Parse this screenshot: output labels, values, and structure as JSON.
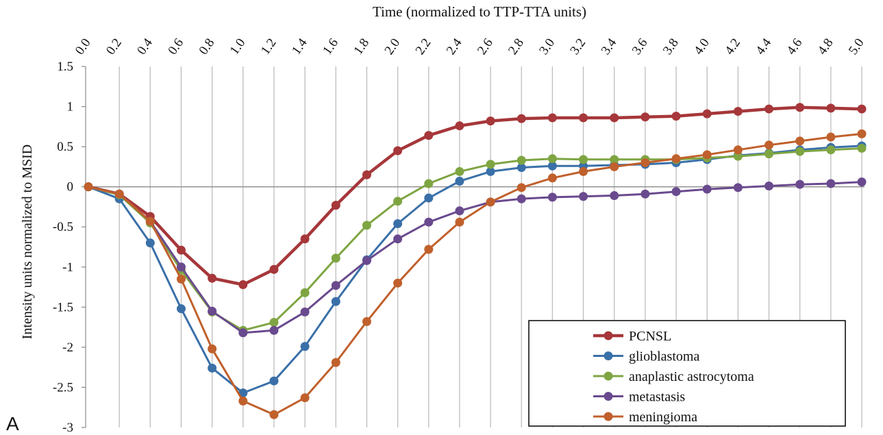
{
  "panel_label": "A",
  "chart_data": {
    "type": "line",
    "xlabel": "Time (normalized to TTP-TTA units)",
    "ylabel": "Intensity units normalized to MSID",
    "x": [
      0.0,
      0.2,
      0.4,
      0.6,
      0.8,
      1.0,
      1.2,
      1.4,
      1.6,
      1.8,
      2.0,
      2.2,
      2.4,
      2.6,
      2.8,
      3.0,
      3.2,
      3.4,
      3.6,
      3.8,
      4.0,
      4.2,
      4.4,
      4.6,
      4.8,
      5.0
    ],
    "x_tick_labels": [
      "0.0",
      "0.2",
      "0.4",
      "0.6",
      "0.8",
      "1.0",
      "1.2",
      "1.4",
      "1.6",
      "1.8",
      "2.0",
      "2.2",
      "2.4",
      "2.6",
      "2.8",
      "3.0",
      "3.2",
      "3.4",
      "3.6",
      "3.8",
      "4.0",
      "4.2",
      "4.4",
      "4.6",
      "4.8",
      "5.0"
    ],
    "y_tick_labels": [
      "1.5",
      "1",
      "0.5",
      "0",
      "-0.5",
      "-1",
      "-1.5",
      "-2",
      "-2.5",
      "-3"
    ],
    "y_ticks": [
      1.5,
      1,
      0.5,
      0,
      -0.5,
      -1,
      -1.5,
      -2,
      -2.5,
      -3
    ],
    "ylim": [
      -3,
      1.5
    ],
    "xlim": [
      0,
      5.0
    ],
    "x_axis_position": "top",
    "grid": "vertical",
    "legend_position": "bottom-right",
    "series": [
      {
        "name": "PCNSL",
        "color": "#a6373a",
        "values": [
          0,
          -0.09,
          -0.37,
          -0.79,
          -1.14,
          -1.22,
          -1.03,
          -0.65,
          -0.23,
          0.15,
          0.45,
          0.64,
          0.76,
          0.82,
          0.85,
          0.86,
          0.86,
          0.86,
          0.87,
          0.88,
          0.91,
          0.94,
          0.97,
          0.99,
          0.98,
          0.97
        ]
      },
      {
        "name": "glioblastoma",
        "color": "#3a70a8",
        "values": [
          0,
          -0.15,
          -0.7,
          -1.52,
          -2.26,
          -2.57,
          -2.42,
          -1.99,
          -1.43,
          -0.91,
          -0.46,
          -0.14,
          0.07,
          0.19,
          0.24,
          0.26,
          0.26,
          0.27,
          0.28,
          0.3,
          0.34,
          0.39,
          0.42,
          0.46,
          0.49,
          0.51
        ]
      },
      {
        "name": "anaplastic astrocytoma",
        "color": "#7ea542",
        "values": [
          0,
          -0.1,
          -0.45,
          -1.04,
          -1.56,
          -1.79,
          -1.69,
          -1.32,
          -0.89,
          -0.48,
          -0.18,
          0.04,
          0.19,
          0.28,
          0.33,
          0.35,
          0.34,
          0.34,
          0.34,
          0.34,
          0.36,
          0.38,
          0.41,
          0.44,
          0.46,
          0.48
        ]
      },
      {
        "name": "metastasis",
        "color": "#6a4a8e",
        "values": [
          0,
          -0.09,
          -0.43,
          -1.0,
          -1.55,
          -1.82,
          -1.79,
          -1.56,
          -1.23,
          -0.92,
          -0.65,
          -0.44,
          -0.3,
          -0.19,
          -0.15,
          -0.13,
          -0.12,
          -0.11,
          -0.09,
          -0.06,
          -0.03,
          -0.01,
          0.01,
          0.03,
          0.04,
          0.06
        ]
      },
      {
        "name": "meningioma",
        "color": "#c0602c",
        "values": [
          0,
          -0.09,
          -0.43,
          -1.15,
          -2.02,
          -2.67,
          -2.84,
          -2.63,
          -2.19,
          -1.68,
          -1.2,
          -0.78,
          -0.44,
          -0.19,
          -0.01,
          0.11,
          0.19,
          0.25,
          0.3,
          0.35,
          0.4,
          0.46,
          0.52,
          0.57,
          0.62,
          0.66
        ]
      }
    ]
  }
}
